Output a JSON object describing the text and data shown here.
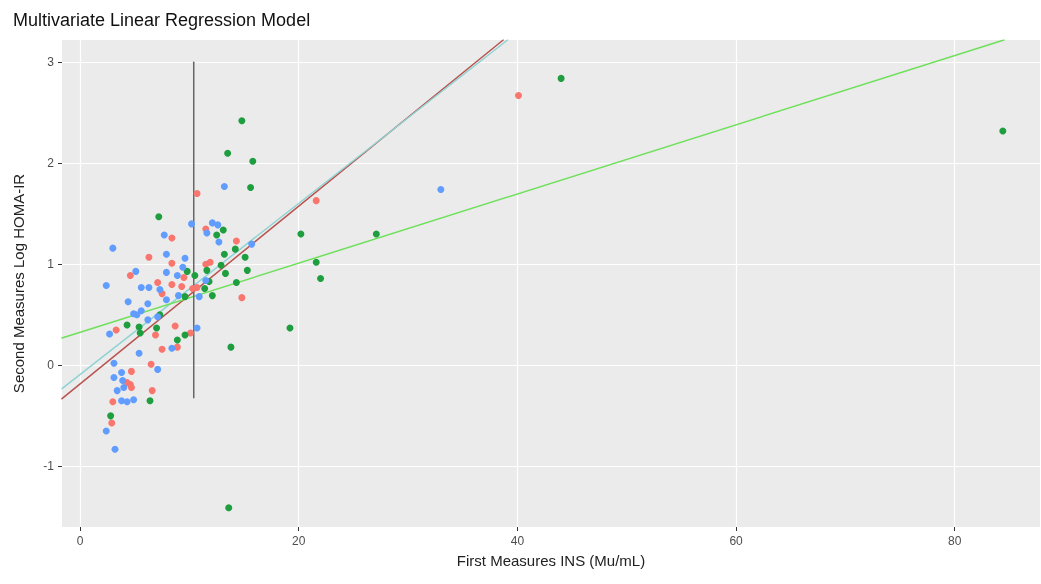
{
  "chart_data": {
    "type": "scatter",
    "title": "Multivariate Linear Regression Model",
    "xlabel": "First Measures INS (Mu/mL)",
    "ylabel": "Second Measures Log HOMA-IR",
    "xlim": [
      -1.65,
      87.8
    ],
    "ylim": [
      -1.6,
      3.22
    ],
    "xticks": [
      0,
      20,
      40,
      60,
      80
    ],
    "yticks": [
      -1,
      0,
      1,
      2,
      3
    ],
    "grid": true,
    "marker": "circle",
    "series": [
      {
        "color": "#f8766d",
        "x": [
          11.5,
          8.4,
          14.3,
          6.3,
          8.4,
          11.5,
          11.9,
          4.6,
          9.5,
          7.1,
          8.4,
          9.3,
          10.3,
          10.7,
          7.5,
          14.8,
          8.7,
          3.3,
          6.9,
          10.1,
          8.9,
          7.5,
          6.5,
          4.7,
          4.3,
          4.6,
          4.7,
          6.6,
          3.0,
          2.9,
          21.6,
          40.1,
          10.7
        ],
        "values": [
          1.35,
          1.26,
          1.23,
          1.07,
          1.01,
          1.0,
          1.02,
          0.89,
          0.87,
          0.82,
          0.8,
          0.78,
          0.76,
          0.77,
          0.71,
          0.67,
          0.39,
          0.35,
          0.3,
          0.32,
          0.18,
          0.16,
          0.01,
          -0.06,
          -0.17,
          -0.19,
          -0.22,
          -0.25,
          -0.36,
          -0.57,
          1.63,
          2.67,
          1.7
        ]
      },
      {
        "color": "#1e9e3e",
        "x": [
          7.2,
          12.5,
          13.1,
          14.2,
          13.2,
          15.1,
          9.8,
          12.9,
          15.3,
          11.6,
          13.3,
          10.5,
          11.8,
          14.3,
          11.4,
          9.6,
          12.1,
          7.3,
          4.3,
          5.4,
          7.0,
          19.2,
          5.5,
          9.6,
          8.9,
          13.8,
          6.4,
          2.8,
          20.2,
          21.6,
          22.0,
          27.1,
          44.0,
          84.4,
          13.6,
          14.8,
          13.5,
          15.8,
          15.6
        ],
        "values": [
          1.47,
          1.29,
          1.34,
          1.15,
          1.1,
          1.07,
          0.93,
          0.99,
          0.94,
          0.94,
          0.91,
          0.89,
          0.83,
          0.82,
          0.76,
          0.68,
          0.69,
          0.5,
          0.4,
          0.38,
          0.37,
          0.37,
          0.32,
          0.3,
          0.25,
          0.18,
          -0.35,
          -0.5,
          1.3,
          1.02,
          0.86,
          1.3,
          2.84,
          2.32,
          -1.41,
          2.42,
          2.1,
          2.02,
          1.76
        ]
      },
      {
        "color": "#619cff",
        "x": [
          10.2,
          12.1,
          12.6,
          11.6,
          12.7,
          7.7,
          3.0,
          15.7,
          7.9,
          9.6,
          9.4,
          5.1,
          7.9,
          8.9,
          11.5,
          2.4,
          5.6,
          6.3,
          7.3,
          7.9,
          9.0,
          10.9,
          4.4,
          6.2,
          4.9,
          5.6,
          5.2,
          7.1,
          6.2,
          10.7,
          2.7,
          8.4,
          5.4,
          3.1,
          7.1,
          3.8,
          3.1,
          3.9,
          4.0,
          3.4,
          3.8,
          4.3,
          4.9,
          2.4,
          3.2,
          33.0,
          13.2
        ],
        "values": [
          1.4,
          1.41,
          1.39,
          1.31,
          1.22,
          1.29,
          1.16,
          1.2,
          1.1,
          1.06,
          0.97,
          0.93,
          0.92,
          0.89,
          0.84,
          0.79,
          0.77,
          0.77,
          0.75,
          0.65,
          0.69,
          0.68,
          0.63,
          0.61,
          0.51,
          0.54,
          0.5,
          0.48,
          0.45,
          0.37,
          0.31,
          0.17,
          0.12,
          0.02,
          -0.04,
          -0.07,
          -0.12,
          -0.15,
          -0.22,
          -0.25,
          -0.35,
          -0.36,
          -0.34,
          -0.65,
          -0.83,
          1.74,
          1.77
        ]
      },
      {
        "type": "line",
        "marker": "none",
        "color": "#b85450",
        "x": [
          -1.65,
          38.7
        ],
        "values": [
          -0.33,
          3.22
        ]
      },
      {
        "type": "line",
        "marker": "none",
        "color": "#8fd3d3",
        "x": [
          -1.65,
          39.1
        ],
        "values": [
          -0.23,
          3.22
        ]
      },
      {
        "type": "line",
        "marker": "none",
        "color": "#6ee05a",
        "x": [
          -1.65,
          84.5
        ],
        "values": [
          0.27,
          3.22
        ]
      },
      {
        "type": "line",
        "marker": "none",
        "color": "#666666",
        "x": [
          10.4,
          10.4
        ],
        "values": [
          -0.32,
          3.0
        ]
      }
    ]
  }
}
